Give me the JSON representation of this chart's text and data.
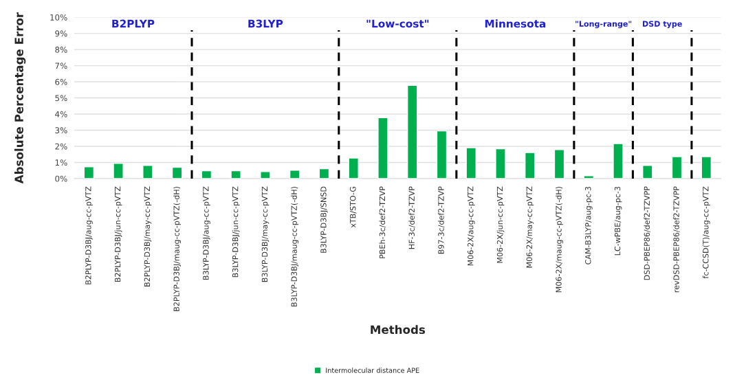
{
  "chart_data": {
    "type": "bar",
    "ylabel": "Absolute Percentage Error",
    "xlabel": "Methods",
    "categories": [
      "B2PLYP-D3BJ/aug-cc-pVTZ",
      "B2PLYP-D3BJ/jun-cc-pVTZ",
      "B2PLYP-D3BJ/may-cc-pVTZ",
      "B2PLYP-D3BJ/maug-cc-pVTZ(-dH)",
      "B3LYP-D3BJ/aug-cc-pVTZ",
      "B3LYP-D3BJ/jun-cc-pVTZ",
      "B3LYP-D3BJ/may-cc-pVTZ",
      "B3LYP-D3BJ/maug-cc-pVTZ(-dH)",
      "B3LYP-D3BJ/SNSD",
      "xTB/STO-G",
      "PBEh-3c/def2-TZVP",
      "HF-3c/def2-TZVP",
      "B97-3c/def2-TZVP",
      "M06-2X/aug-cc-pVTZ",
      "M06-2X/jun-cc-pVTZ",
      "M06-2X/may-cc-pVTZ",
      "M06-2X/maug-cc-pVTZ(-dH)",
      "CAM-B3LYP/aug-pc-3",
      "LC-wPBE/aug-pc-3",
      "DSD-PBEP86/def2-TZVPP",
      "revDSD-PBEP86/def2-TZVPP",
      "fc-CCSD(T)/aug-cc-pVTZ"
    ],
    "series": [
      {
        "name": "Intermolecular distance APE",
        "color": "#00b050",
        "values": [
          0.73,
          0.94,
          0.82,
          0.7,
          0.49,
          0.49,
          0.43,
          0.52,
          0.61,
          1.27,
          3.77,
          5.78,
          2.96,
          1.91,
          1.85,
          1.61,
          1.79,
          0.18,
          2.17,
          0.81,
          1.36,
          1.36
        ]
      }
    ],
    "ylim": [
      0,
      10
    ],
    "yticks": [
      {
        "value": 0,
        "label": "0%"
      },
      {
        "value": 1,
        "label": "1%"
      },
      {
        "value": 2,
        "label": "2%"
      },
      {
        "value": 3,
        "label": "3%"
      },
      {
        "value": 4,
        "label": "4%"
      },
      {
        "value": 5,
        "label": "5%"
      },
      {
        "value": 6,
        "label": "6%"
      },
      {
        "value": 7,
        "label": "7%"
      },
      {
        "value": 8,
        "label": "8%"
      },
      {
        "value": 9,
        "label": "9%"
      },
      {
        "value": 10,
        "label": "10%"
      }
    ],
    "grid": "y",
    "legend": "bottom",
    "annotations": [
      "B2PLYP",
      "B3LYP",
      "\"Low-cost\"",
      "Minnesota",
      "\"Long-range\"",
      "DSD type"
    ]
  }
}
